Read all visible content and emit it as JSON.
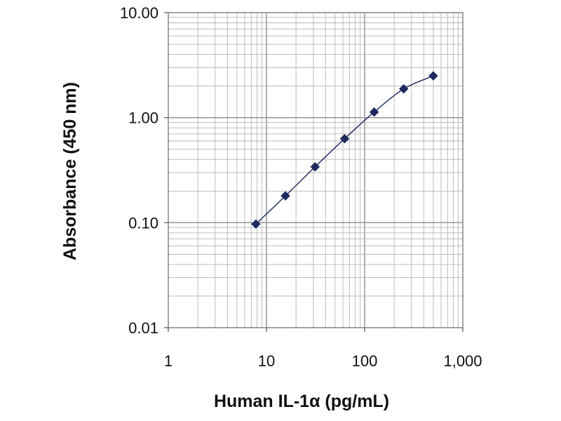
{
  "chart_data": {
    "type": "scatter",
    "title": "",
    "xlabel": "Human IL-1α (pg/mL)",
    "ylabel": "Absorbance (450 nm)",
    "xscale": "log",
    "yscale": "log",
    "xlim": [
      1,
      1000
    ],
    "ylim": [
      0.01,
      10
    ],
    "grid": true,
    "legend": "none",
    "x_tick_labels": [
      "1",
      "10",
      "100",
      "1,000"
    ],
    "y_tick_labels": [
      "0.01",
      "0.10",
      "1.00",
      "10.00"
    ],
    "series": [
      {
        "x": [
          7.8,
          15.6,
          31.25,
          62.5,
          125,
          250,
          500
        ],
        "y": [
          0.097,
          0.18,
          0.34,
          0.63,
          1.13,
          1.88,
          2.5
        ],
        "marker": "diamond",
        "color": "#1f2a5e",
        "line": "smooth"
      }
    ]
  }
}
